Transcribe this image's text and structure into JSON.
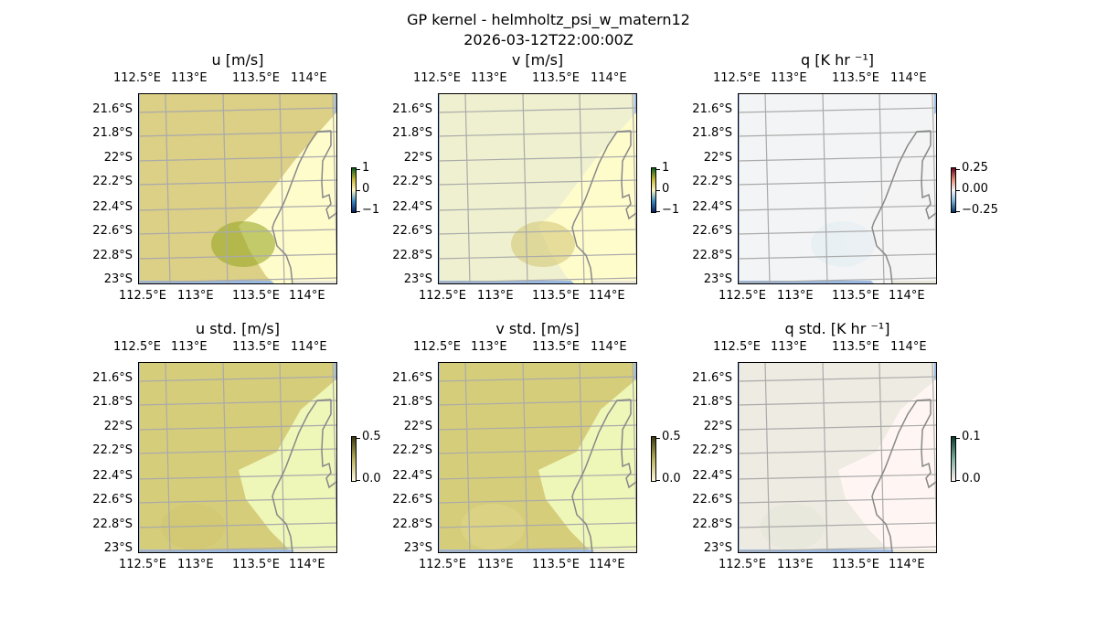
{
  "title_line1": "GP kernel - helmholtz_psi_w_matern12",
  "title_line2": "2026-03-12T22:00:00Z",
  "lon_ticks": [
    "112.5°E",
    "113°E",
    "113.5°E",
    "114°E"
  ],
  "lat_ticks": [
    "21.6°S",
    "21.8°S",
    "22°S",
    "22.2°S",
    "22.4°S",
    "22.6°S",
    "22.8°S",
    "23°S"
  ],
  "chart_data": [
    {
      "type": "heatmap",
      "title": "u [m/s]",
      "colorbar": {
        "ticks": [
          "1",
          "0",
          "−1"
        ],
        "range": [
          -1,
          1
        ]
      },
      "colors": {
        "field": "#dccf86",
        "low": "#fffccc",
        "accent": "#9aa826"
      }
    },
    {
      "type": "heatmap",
      "title": "v [m/s]",
      "colorbar": {
        "ticks": [
          "1",
          "0",
          "−1"
        ],
        "range": [
          -1,
          1
        ]
      },
      "colors": {
        "field": "#eef0cf",
        "low": "#fffccc",
        "accent": "#d6c878"
      }
    },
    {
      "type": "heatmap",
      "title": "q [K hr ⁻¹]",
      "colorbar": {
        "ticks": [
          "0.25",
          "0.00",
          "−0.25"
        ],
        "range": [
          -0.25,
          0.25
        ]
      },
      "colors": {
        "field": "#f3f4f5",
        "low": "#f4f4f4",
        "accent": "#e2ecf3"
      }
    },
    {
      "type": "heatmap",
      "title": "u std. [m/s]",
      "colorbar": {
        "ticks": [
          "0.5",
          "0.0"
        ],
        "range": [
          0,
          0.5
        ]
      },
      "colors": {
        "field": "#d6cd7a",
        "low": "#eef6b8",
        "accent": "#d0c670"
      }
    },
    {
      "type": "heatmap",
      "title": "v std. [m/s]",
      "colorbar": {
        "ticks": [
          "0.5",
          "0.0"
        ],
        "range": [
          0,
          0.5
        ]
      },
      "colors": {
        "field": "#d6cd7a",
        "low": "#eef6b8",
        "accent": "#ddd68a"
      }
    },
    {
      "type": "heatmap",
      "title": "q std. [K hr ⁻¹]",
      "colorbar": {
        "ticks": [
          "0.1",
          "0.0"
        ],
        "range": [
          0,
          0.1
        ]
      },
      "colors": {
        "field": "#eeebe2",
        "low": "#fff5f2",
        "accent": "#e6e6d8"
      }
    }
  ]
}
